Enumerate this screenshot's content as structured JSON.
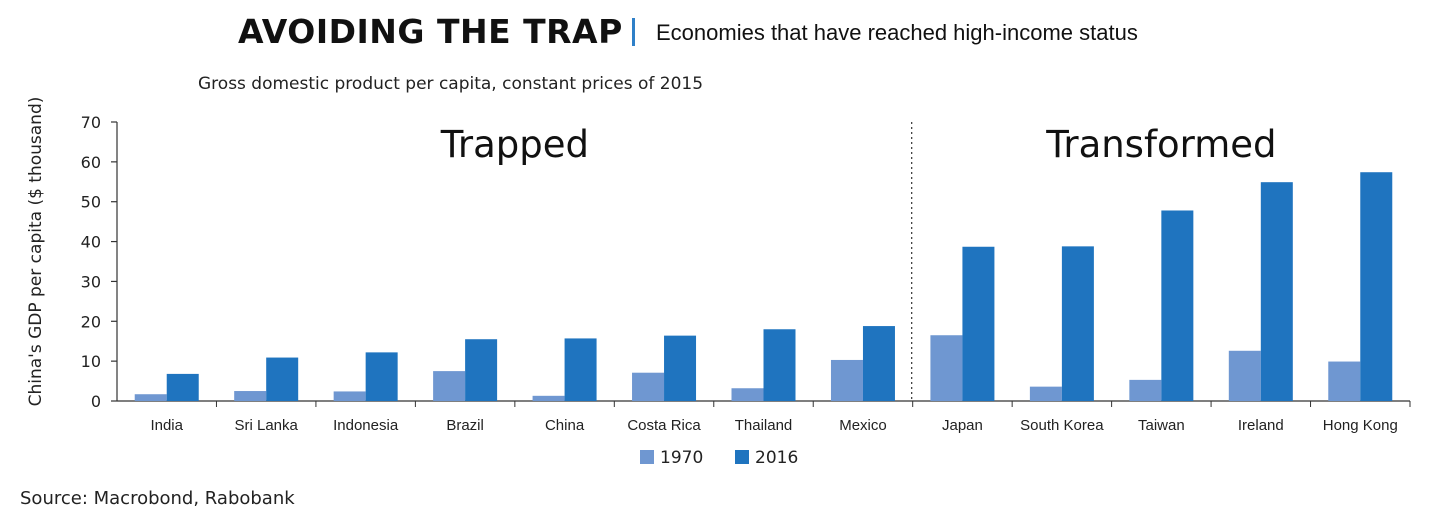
{
  "header": {
    "title": "AVOIDING THE TRAP",
    "subtitle": "Economies that have reached high-income status"
  },
  "chart_note": "Gross domestic product per capita, constant prices of 2015",
  "source": "Source: Macrobond, Rabobank",
  "colors": {
    "series_1970": "#6f97d1",
    "series_2016": "#1f74bf",
    "axis": "#333333",
    "divider": "#333333"
  },
  "chart_data": {
    "type": "bar",
    "ylabel": "China's GDP per capita ($ thousand)",
    "ylim": [
      0,
      70
    ],
    "yticks": [
      0,
      10,
      20,
      30,
      40,
      50,
      60,
      70
    ],
    "grid": false,
    "legend_position": "bottom-center",
    "categories": [
      "India",
      "Sri Lanka",
      "Indonesia",
      "Brazil",
      "China",
      "Costa Rica",
      "Thailand",
      "Mexico",
      "Japan",
      "South Korea",
      "Taiwan",
      "Ireland",
      "Hong Kong"
    ],
    "series": [
      {
        "name": "1970",
        "values": [
          1.7,
          2.5,
          2.4,
          7.5,
          1.3,
          7.1,
          3.2,
          10.3,
          16.5,
          3.6,
          5.3,
          12.6,
          9.9
        ]
      },
      {
        "name": "2016",
        "values": [
          6.8,
          10.9,
          12.2,
          15.5,
          15.7,
          16.4,
          18.0,
          18.8,
          38.7,
          38.8,
          47.8,
          54.9,
          57.4
        ]
      }
    ],
    "groups": [
      {
        "label": "Trapped",
        "from": 0,
        "to": 7
      },
      {
        "label": "Transformed",
        "from": 8,
        "to": 12
      }
    ]
  }
}
